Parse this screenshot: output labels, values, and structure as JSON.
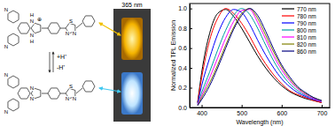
{
  "chart_data": {
    "type": "line",
    "x_label": "Wavelength (nm)",
    "y_label": "Normalized TPL Emission",
    "x": [
      390,
      400,
      420,
      440,
      460,
      480,
      500,
      520,
      540,
      560,
      580,
      600,
      620,
      640,
      660,
      680,
      700
    ],
    "series": [
      {
        "name": "770 nm",
        "color": "#000000",
        "values": [
          0.05,
          0.35,
          0.75,
          0.95,
          0.99,
          0.92,
          0.8,
          0.66,
          0.52,
          0.4,
          0.3,
          0.22,
          0.16,
          0.12,
          0.09,
          0.07,
          0.05
        ]
      },
      {
        "name": "780 nm",
        "color": "#ff0000",
        "values": [
          0.05,
          0.3,
          0.68,
          0.9,
          1.0,
          0.95,
          0.85,
          0.72,
          0.57,
          0.44,
          0.33,
          0.24,
          0.17,
          0.13,
          0.1,
          0.07,
          0.05
        ]
      },
      {
        "name": "790 nm",
        "color": "#0000ff",
        "values": [
          0.04,
          0.22,
          0.5,
          0.74,
          0.91,
          0.99,
          0.96,
          0.84,
          0.68,
          0.53,
          0.4,
          0.29,
          0.21,
          0.15,
          0.11,
          0.08,
          0.06
        ]
      },
      {
        "name": "800 nm",
        "color": "#00a0a0",
        "values": [
          0.03,
          0.15,
          0.36,
          0.58,
          0.78,
          0.93,
          1.0,
          0.94,
          0.8,
          0.63,
          0.47,
          0.34,
          0.24,
          0.17,
          0.12,
          0.09,
          0.06
        ]
      },
      {
        "name": "810 nm",
        "color": "#ff00ff",
        "values": [
          0.03,
          0.12,
          0.3,
          0.5,
          0.7,
          0.87,
          0.98,
          0.99,
          0.86,
          0.69,
          0.52,
          0.38,
          0.27,
          0.19,
          0.13,
          0.09,
          0.06
        ]
      },
      {
        "name": "820 nm",
        "color": "#808000",
        "values": [
          0.02,
          0.1,
          0.25,
          0.43,
          0.63,
          0.81,
          0.95,
          1.0,
          0.9,
          0.73,
          0.56,
          0.41,
          0.29,
          0.2,
          0.14,
          0.1,
          0.07
        ]
      },
      {
        "name": "860 nm",
        "color": "#000080",
        "values": [
          0.02,
          0.08,
          0.22,
          0.4,
          0.6,
          0.79,
          0.93,
          1.0,
          0.93,
          0.77,
          0.59,
          0.43,
          0.31,
          0.21,
          0.15,
          0.1,
          0.07
        ]
      }
    ],
    "xlim": [
      370,
      720
    ],
    "xticks": [
      400,
      500,
      600,
      700
    ],
    "ylim": [
      0,
      1.05
    ],
    "yticks": [
      {
        "value": 0,
        "label": "0.0"
      },
      {
        "value": 0.2,
        "label": "0.2"
      },
      {
        "value": 0.4,
        "label": "0.4"
      },
      {
        "value": 0.6,
        "label": "0.6"
      },
      {
        "value": 0.8,
        "label": "0.8"
      },
      {
        "value": 1.0,
        "label": "1.0"
      }
    ],
    "legend": "top-right",
    "grid": false
  },
  "scheme": {
    "excitation": "365 nm",
    "protonate": "+H⁺",
    "deprotonate": "-H⁺",
    "top_atoms": [
      "N",
      "N",
      "N",
      "H",
      "N",
      "H",
      "⊕",
      "S",
      "N",
      "N"
    ],
    "bottom_atoms": [
      "N",
      "N",
      "N",
      "N",
      "S",
      "N",
      "N"
    ]
  }
}
